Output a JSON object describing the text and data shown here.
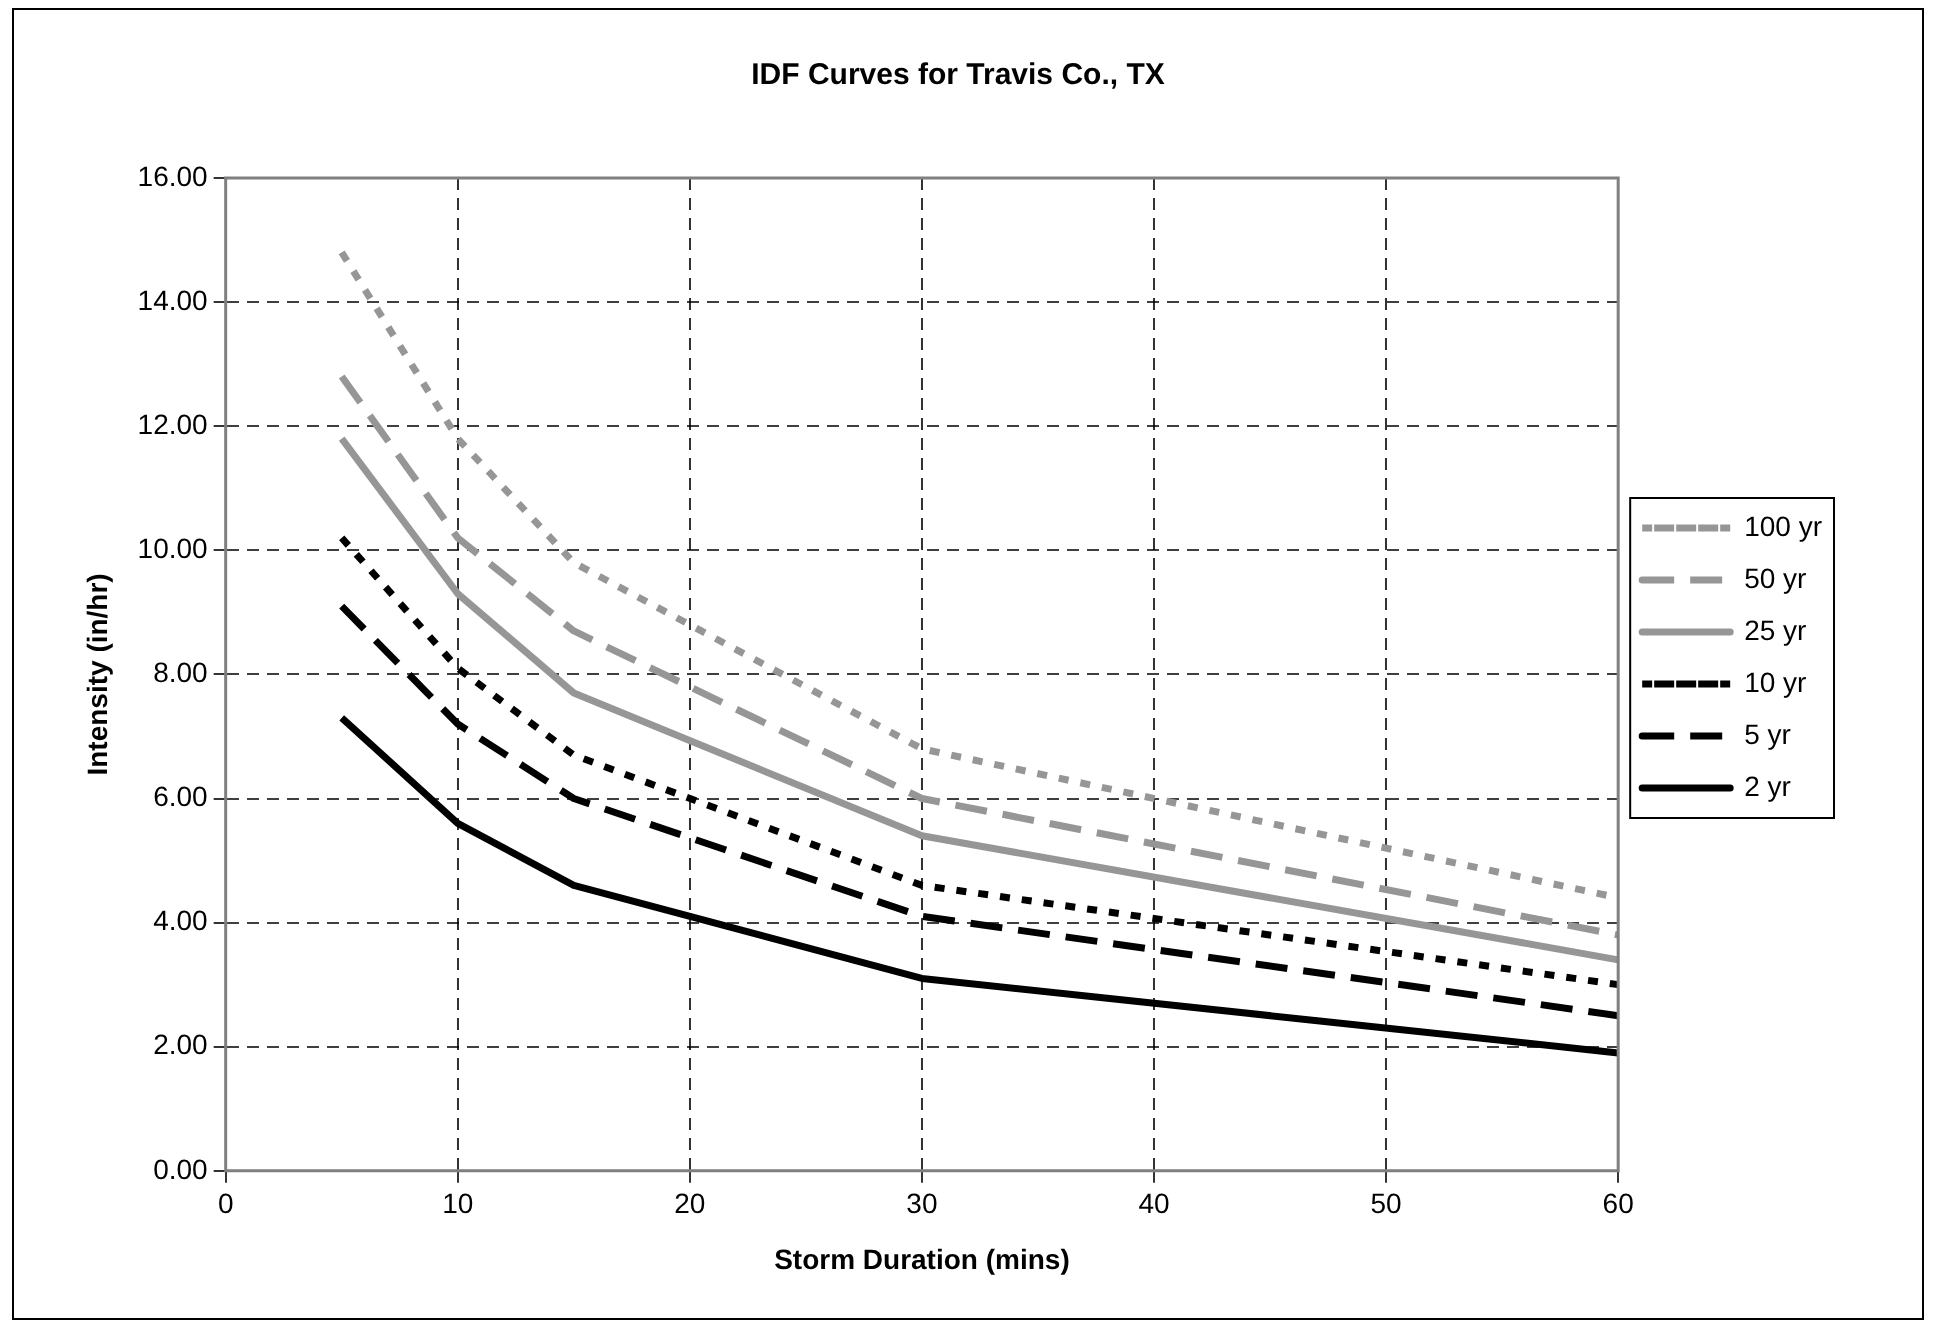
{
  "chart_data": {
    "type": "line",
    "title": "IDF Curves for Travis Co., TX",
    "xlabel": "Storm Duration (mins)",
    "ylabel": "Intensity (in/hr)",
    "x": [
      5,
      10,
      15,
      30,
      60
    ],
    "xlim": [
      0,
      60
    ],
    "xticks": [
      0,
      10,
      20,
      30,
      40,
      50,
      60
    ],
    "ylim": [
      0,
      16
    ],
    "yticks": [
      {
        "value": 0,
        "label": "0.00"
      },
      {
        "value": 2,
        "label": "2.00"
      },
      {
        "value": 4,
        "label": "4.00"
      },
      {
        "value": 6,
        "label": "6.00"
      },
      {
        "value": 8,
        "label": "8.00"
      },
      {
        "value": 10,
        "label": "10.00"
      },
      {
        "value": 12,
        "label": "12.00"
      },
      {
        "value": 14,
        "label": "14.00"
      },
      {
        "value": 16,
        "label": "16.00"
      }
    ],
    "grid": true,
    "legend": "right",
    "marker": "none",
    "series": [
      {
        "name": "100 yr",
        "color": "#969696",
        "line_style": "dotted",
        "values": [
          14.8,
          11.8,
          9.8,
          6.8,
          4.4
        ]
      },
      {
        "name": "50 yr",
        "color": "#969696",
        "line_style": "dashed",
        "values": [
          12.8,
          10.2,
          8.7,
          6.0,
          3.8
        ]
      },
      {
        "name": "25 yr",
        "color": "#969696",
        "line_style": "solid",
        "values": [
          11.8,
          9.3,
          7.7,
          5.4,
          3.4
        ]
      },
      {
        "name": "10 yr",
        "color": "#000000",
        "line_style": "dotted",
        "values": [
          10.2,
          8.1,
          6.7,
          4.6,
          3.0
        ]
      },
      {
        "name": "5 yr",
        "color": "#000000",
        "line_style": "dashed",
        "values": [
          9.1,
          7.2,
          6.0,
          4.1,
          2.5
        ]
      },
      {
        "name": "2 yr",
        "color": "#000000",
        "line_style": "solid",
        "values": [
          7.3,
          5.6,
          4.6,
          3.1,
          1.9
        ]
      }
    ]
  }
}
